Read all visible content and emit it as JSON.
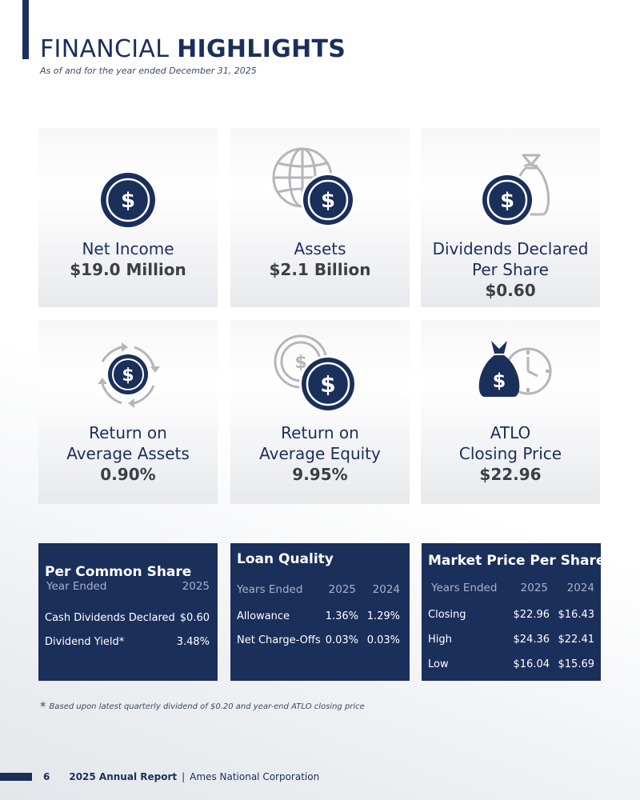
{
  "header": {
    "title_light": "FINANCIAL ",
    "title_bold": "HIGHLIGHTS",
    "subtitle": "As of and for the year ended December 31, 2025"
  },
  "tiles": [
    {
      "label_line1": "Net Income",
      "label_line2": "",
      "value": "$19.0 Million",
      "icon": "dollar-coin-icon"
    },
    {
      "label_line1": "Assets",
      "label_line2": "",
      "value": "$2.1 Billion",
      "icon": "globe-dollar-icon"
    },
    {
      "label_line1": "Dividends Declared",
      "label_line2": "Per Share",
      "value": "$0.60",
      "icon": "money-bag-coin-icon"
    },
    {
      "label_line1": "Return on",
      "label_line2": "Average Assets",
      "value": "0.90%",
      "icon": "circular-arrows-dollar-icon"
    },
    {
      "label_line1": "Return on",
      "label_line2": "Average Equity",
      "value": "9.95%",
      "icon": "stacked-coins-icon"
    },
    {
      "label_line1": "ATLO",
      "label_line2": "Closing Price",
      "value": "$22.96",
      "icon": "money-bag-clock-icon"
    }
  ],
  "per_common_share": {
    "title": "Per Common Share",
    "col_label": "Year Ended",
    "col_2025": "2025",
    "rows": [
      {
        "label": "Cash Dividends Declared",
        "v2025": "$0.60"
      },
      {
        "label": "Dividend Yield*",
        "v2025": "3.48%"
      }
    ]
  },
  "loan_quality": {
    "title": "Loan Quality",
    "col_label": "Years Ended",
    "col_2025": "2025",
    "col_2024": "2024",
    "rows": [
      {
        "label": "Allowance",
        "v2025": "1.36%",
        "v2024": "1.29%"
      },
      {
        "label": "Net Charge-Offs",
        "v2025": "0.03%",
        "v2024": "0.03%"
      }
    ]
  },
  "market_price": {
    "title": "Market Price Per Share",
    "col_label": "Years Ended",
    "col_2025": "2025",
    "col_2024": "2024",
    "rows": [
      {
        "label": "Closing",
        "v2025": "$22.96",
        "v2024": "$16.43"
      },
      {
        "label": "High",
        "v2025": "$24.36",
        "v2024": "$22.41"
      },
      {
        "label": "Low",
        "v2025": "$16.04",
        "v2024": "$15.69"
      }
    ]
  },
  "footnote": {
    "star": "*",
    "text": "Based upon latest quarterly dividend of $0.20 and year-end ATLO closing price"
  },
  "footer": {
    "page": "6",
    "report": "2025 Annual Report",
    "separator": "|",
    "company": "Ames National Corporation"
  },
  "colors": {
    "navy": "#1b2f5b",
    "icon_gray": "#b4b6ba"
  }
}
